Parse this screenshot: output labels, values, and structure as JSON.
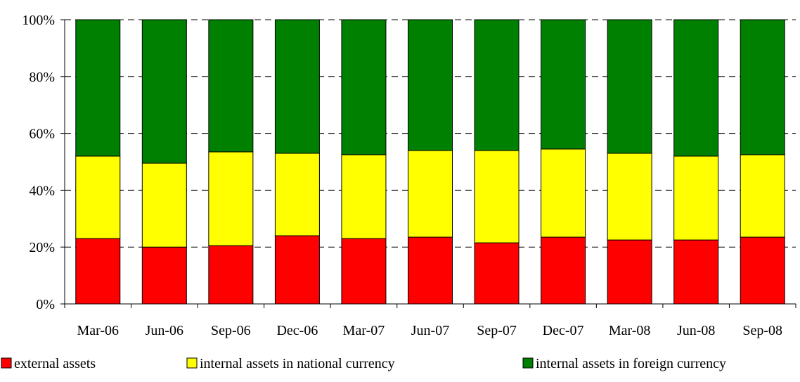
{
  "chart_data": {
    "type": "bar",
    "stacked": true,
    "percent": true,
    "categories": [
      "Mar-06",
      "Jun-06",
      "Sep-06",
      "Dec-06",
      "Mar-07",
      "Jun-07",
      "Sep-07",
      "Dec-07",
      "Mar-08",
      "Jun-08",
      "Sep-08"
    ],
    "series": [
      {
        "name": "external assets",
        "color": "#ff0000",
        "values": [
          23.0,
          20.0,
          20.5,
          24.0,
          23.0,
          23.5,
          21.5,
          23.5,
          22.5,
          22.5,
          23.5
        ]
      },
      {
        "name": "internal assets in national currency",
        "color": "#ffff00",
        "values": [
          29.0,
          29.5,
          33.0,
          29.0,
          29.5,
          30.5,
          32.5,
          31.0,
          30.5,
          29.5,
          29.0
        ]
      },
      {
        "name": "internal assets in foreign currency",
        "color": "#008000",
        "values": [
          48.0,
          50.5,
          46.5,
          47.0,
          47.5,
          46.0,
          46.0,
          45.5,
          47.0,
          48.0,
          47.5
        ]
      }
    ],
    "ylim": [
      0,
      100
    ],
    "yticks": [
      "0%",
      "20%",
      "40%",
      "60%",
      "80%",
      "100%"
    ],
    "grid": "horizontal dashed",
    "legend_position": "bottom",
    "title": "",
    "xlabel": "",
    "ylabel": ""
  }
}
